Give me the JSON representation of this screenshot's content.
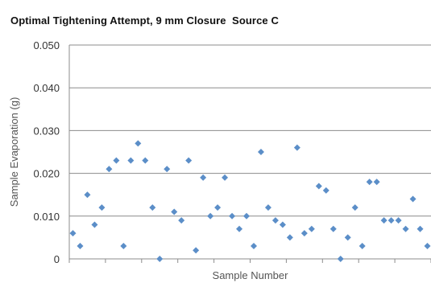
{
  "chart_data": {
    "type": "scatter",
    "title": "Optimal Tightening Attempt, 9 mm Closure  Source C",
    "xlabel": "Sample Number",
    "ylabel": "Sample Evaporation (g)",
    "ylim": [
      0,
      0.05
    ],
    "yticks": [
      "0",
      "0.010",
      "0.020",
      "0.030",
      "0.040",
      "0.050"
    ],
    "xlim": [
      0.5,
      50.5
    ],
    "x_tick_every": 5,
    "grid": "horizontal",
    "marker": "diamond",
    "color": "#5b8ec8",
    "x": [
      1,
      2,
      3,
      4,
      5,
      6,
      7,
      8,
      9,
      10,
      11,
      12,
      13,
      14,
      15,
      16,
      17,
      18,
      19,
      20,
      21,
      22,
      23,
      24,
      25,
      26,
      27,
      28,
      29,
      30,
      31,
      32,
      33,
      34,
      35,
      36,
      37,
      38,
      39,
      40,
      41,
      42,
      43,
      44,
      45,
      46,
      47,
      48,
      49,
      50
    ],
    "y": [
      0.006,
      0.003,
      0.015,
      0.008,
      0.012,
      0.021,
      0.023,
      0.003,
      0.023,
      0.027,
      0.023,
      0.012,
      0.0,
      0.021,
      0.011,
      0.009,
      0.023,
      0.002,
      0.019,
      0.01,
      0.012,
      0.019,
      0.01,
      0.007,
      0.01,
      0.003,
      0.025,
      0.012,
      0.009,
      0.008,
      0.005,
      0.026,
      0.006,
      0.007,
      0.017,
      0.016,
      0.007,
      0.0,
      0.005,
      0.012,
      0.003,
      0.018,
      0.018,
      0.009,
      0.009,
      0.009,
      0.007,
      0.014,
      0.007,
      0.003
    ]
  }
}
